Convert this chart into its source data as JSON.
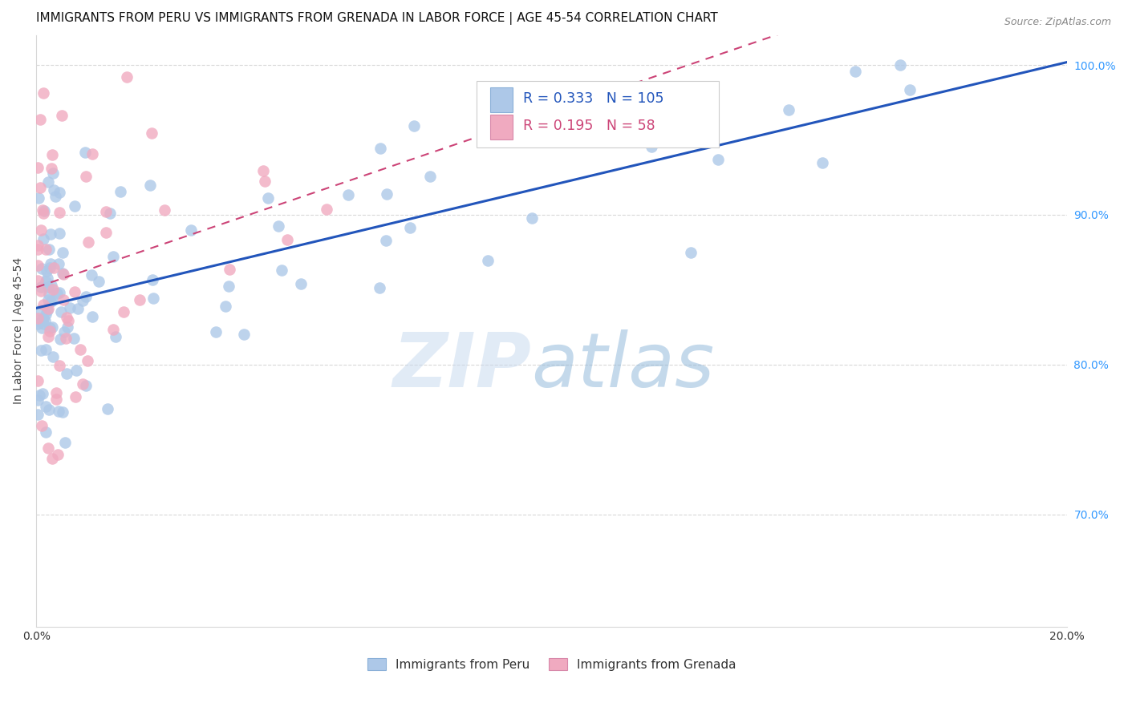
{
  "title": "IMMIGRANTS FROM PERU VS IMMIGRANTS FROM GRENADA IN LABOR FORCE | AGE 45-54 CORRELATION CHART",
  "source": "Source: ZipAtlas.com",
  "ylabel": "In Labor Force | Age 45-54",
  "xlim": [
    0.0,
    0.2
  ],
  "ylim": [
    0.625,
    1.02
  ],
  "xticks": [
    0.0,
    0.02,
    0.04,
    0.06,
    0.08,
    0.1,
    0.12,
    0.14,
    0.16,
    0.18,
    0.2
  ],
  "xtick_labels": [
    "0.0%",
    "",
    "",
    "",
    "",
    "",
    "",
    "",
    "",
    "",
    "20.0%"
  ],
  "yticks_right": [
    0.7,
    0.8,
    0.9,
    1.0
  ],
  "ytick_labels_right": [
    "70.0%",
    "80.0%",
    "90.0%",
    "100.0%"
  ],
  "peru_R": 0.333,
  "peru_N": 105,
  "grenada_R": 0.195,
  "grenada_N": 58,
  "peru_color": "#adc8e8",
  "peru_line_color": "#2255bb",
  "grenada_color": "#f0aac0",
  "grenada_line_color": "#cc4477",
  "legend_label_peru": "Immigrants from Peru",
  "legend_label_grenada": "Immigrants from Grenada",
  "background_color": "#ffffff",
  "grid_color": "#d8d8d8",
  "title_fontsize": 11,
  "axis_label_fontsize": 10,
  "tick_fontsize": 10,
  "right_tick_color": "#3399ff",
  "peru_line_intercept": 0.84,
  "peru_line_slope": 0.75,
  "grenada_line_intercept": 0.84,
  "grenada_line_slope": 1.2
}
